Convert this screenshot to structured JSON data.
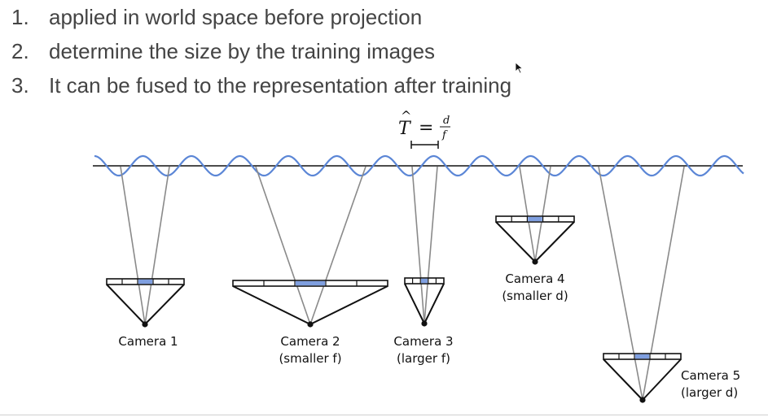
{
  "bullets": [
    {
      "number": "1.",
      "text": "applied in world space before projection"
    },
    {
      "number": "2.",
      "text": "determine the size by the training images"
    },
    {
      "number": "3.",
      "text": "It can be fused to the representation after training"
    }
  ],
  "equation": {
    "lhs": "T",
    "hat": "^",
    "equals": "=",
    "numerator": "d",
    "denominator": "f"
  },
  "cameras": [
    {
      "name": "Camera 1",
      "note": ""
    },
    {
      "name": "Camera 2",
      "note": "(smaller f)"
    },
    {
      "name": "Camera 3",
      "note": "(larger f)"
    },
    {
      "name": "Camera 4",
      "note": "(smaller d)"
    },
    {
      "name": "Camera 5",
      "note": "(larger d)"
    }
  ],
  "colors": {
    "wave": "#5b86d6",
    "ray": "#8a8a8a",
    "pixel_highlight": "#7f9fe0",
    "ink": "#111111",
    "bullet_text": "#444444"
  },
  "icons": {
    "cursor": "mouse-pointer-icon"
  }
}
